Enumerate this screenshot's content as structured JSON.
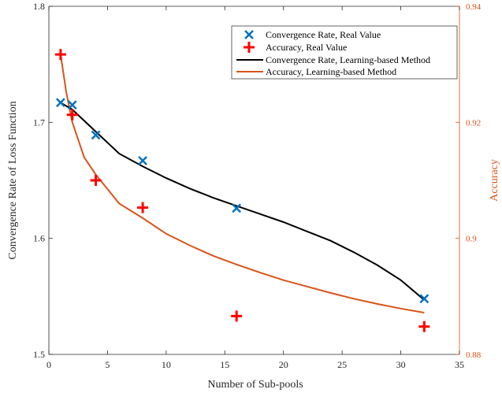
{
  "chart_data": {
    "type": "line",
    "xlabel": "Number of Sub-pools",
    "ylabel_left": "Convergence Rate of Loss Function",
    "ylabel_right": "Accuracy",
    "xlim": [
      0,
      35
    ],
    "ylim_left": [
      1.5,
      1.8
    ],
    "ylim_right": [
      0.88,
      0.94
    ],
    "x_ticks": [
      "0",
      "5",
      "10",
      "15",
      "20",
      "25",
      "30",
      "35"
    ],
    "y_ticks_left": [
      "1.5",
      "1.6",
      "1.7",
      "1.8"
    ],
    "y_ticks_right": [
      "0.88",
      "0.9",
      "0.92",
      "0.94"
    ],
    "grid": false,
    "legend_position": "top-right",
    "colors": {
      "convergence": "#0072bd",
      "accuracy": "#ff0000",
      "fit_convergence": "#000000",
      "fit_accuracy": "#d95319",
      "right_axis": "#d95319"
    },
    "series": [
      {
        "name": "Convergence Rate, Real Value",
        "axis": "left",
        "marker": "x",
        "x": [
          1,
          2,
          4,
          8,
          16,
          32
        ],
        "y": [
          1.717,
          1.715,
          1.689,
          1.667,
          1.626,
          1.548
        ]
      },
      {
        "name": "Accuracy, Real Value",
        "axis": "right",
        "marker": "+",
        "x": [
          1,
          2,
          4,
          8,
          16,
          32
        ],
        "y": [
          0.9317,
          0.9213,
          0.91,
          0.9053,
          0.8866,
          0.8848
        ]
      },
      {
        "name": "Convergence Rate, Learning-based Method",
        "axis": "left",
        "marker": "line",
        "x": [
          1,
          2,
          4,
          6,
          8,
          10,
          12,
          14,
          16,
          18,
          20,
          22,
          24,
          26,
          28,
          30,
          32
        ],
        "y": [
          1.717,
          1.711,
          1.692,
          1.673,
          1.662,
          1.652,
          1.643,
          1.635,
          1.628,
          1.621,
          1.614,
          1.606,
          1.598,
          1.588,
          1.577,
          1.564,
          1.547
        ]
      },
      {
        "name": "Accuracy, Learning-based Method",
        "axis": "right",
        "marker": "line",
        "x": [
          1,
          1.5,
          2,
          3,
          4,
          6,
          8,
          10,
          12,
          14,
          16,
          18,
          20,
          22,
          24,
          26,
          28,
          30,
          32
        ],
        "y": [
          0.9317,
          0.925,
          0.92,
          0.914,
          0.911,
          0.906,
          0.9035,
          0.9008,
          0.8988,
          0.897,
          0.8955,
          0.8941,
          0.8928,
          0.8917,
          0.8906,
          0.8896,
          0.8887,
          0.8879,
          0.8872
        ]
      }
    ]
  }
}
